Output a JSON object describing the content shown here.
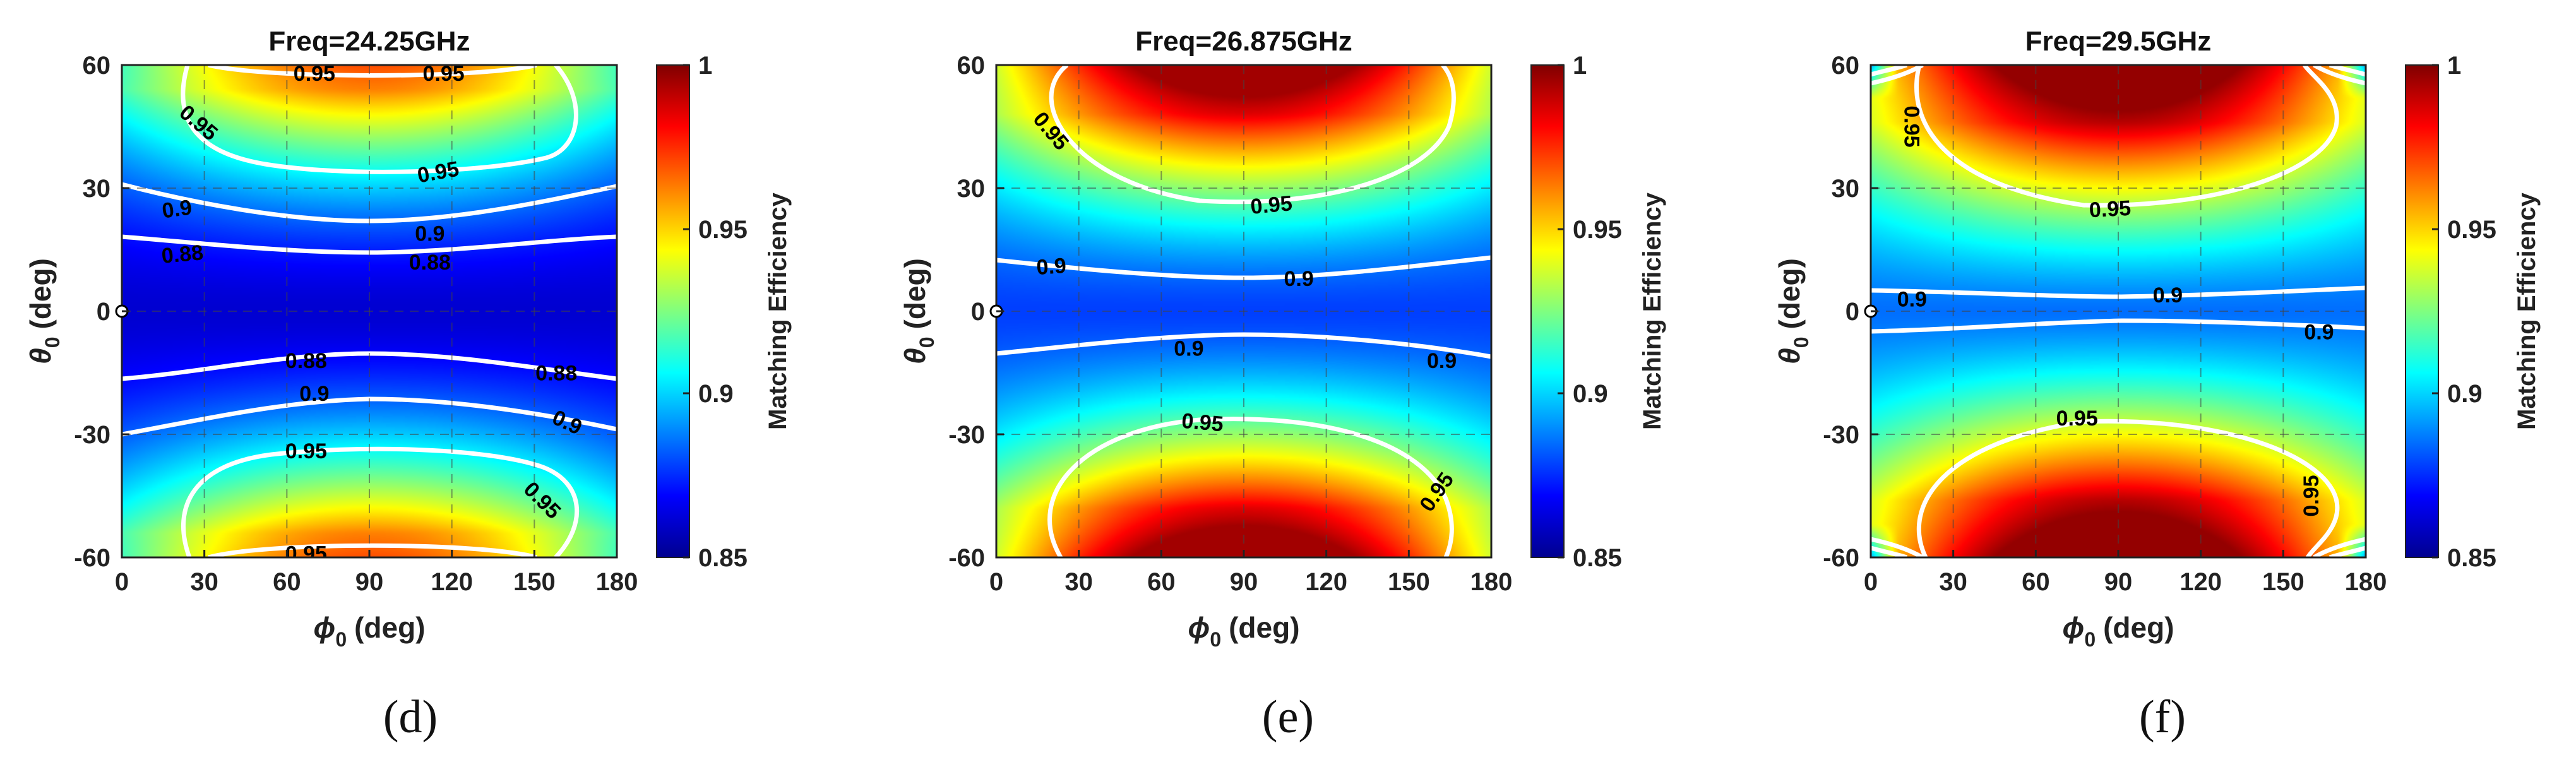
{
  "chart_data": [
    {
      "type": "heatmap",
      "panel": "(d)",
      "title": "Freq=24.25GHz",
      "xlabel_symbol": "ϕ",
      "xlabel_sub": "0",
      "xlabel_unit": "(deg)",
      "ylabel_symbol": "θ",
      "ylabel_sub": "0",
      "ylabel_unit": "(deg)",
      "xlim": [
        0,
        180
      ],
      "ylim": [
        -60,
        60
      ],
      "xticks": [
        0,
        30,
        60,
        90,
        120,
        150,
        180
      ],
      "yticks": [
        -60,
        -30,
        0,
        30,
        60
      ],
      "clim": [
        0.85,
        1
      ],
      "colorbar_ticks": [
        "0.85",
        "0.9",
        "0.95",
        "1"
      ],
      "colorbar_label": "Matching Efficiency",
      "contour_levels": [
        0.88,
        0.9,
        0.95
      ],
      "contour_labels": [
        {
          "text": "0.95",
          "x": 70,
          "y": 58,
          "rot": 0
        },
        {
          "text": "0.95",
          "x": 117,
          "y": 58,
          "rot": 0
        },
        {
          "text": "0.95",
          "x": 28,
          "y": 46,
          "rot": 40
        },
        {
          "text": "0.95",
          "x": 115,
          "y": 34,
          "rot": -10
        },
        {
          "text": "0.9",
          "x": 20,
          "y": 25,
          "rot": -8
        },
        {
          "text": "0.9",
          "x": 112,
          "y": 19,
          "rot": 0
        },
        {
          "text": "0.88",
          "x": 22,
          "y": 14,
          "rot": -5
        },
        {
          "text": "0.88",
          "x": 112,
          "y": 12,
          "rot": 0
        },
        {
          "text": "0.88",
          "x": 67,
          "y": -12,
          "rot": 0
        },
        {
          "text": "0.88",
          "x": 158,
          "y": -15,
          "rot": 0
        },
        {
          "text": "0.9",
          "x": 70,
          "y": -20,
          "rot": 0
        },
        {
          "text": "0.9",
          "x": 162,
          "y": -27,
          "rot": 25
        },
        {
          "text": "0.95",
          "x": 67,
          "y": -34,
          "rot": 0
        },
        {
          "text": "0.95",
          "x": 153,
          "y": -46,
          "rot": 45
        },
        {
          "text": "0.95",
          "x": 67,
          "y": -59,
          "rot": 0
        }
      ]
    },
    {
      "type": "heatmap",
      "panel": "(e)",
      "title": "Freq=26.875GHz",
      "xlabel_symbol": "ϕ",
      "xlabel_sub": "0",
      "xlabel_unit": "(deg)",
      "ylabel_symbol": "θ",
      "ylabel_sub": "0",
      "ylabel_unit": "(deg)",
      "xlim": [
        0,
        180
      ],
      "ylim": [
        -60,
        60
      ],
      "xticks": [
        0,
        30,
        60,
        90,
        120,
        150,
        180
      ],
      "yticks": [
        -60,
        -30,
        0,
        30,
        60
      ],
      "clim": [
        0.85,
        1
      ],
      "colorbar_ticks": [
        "0.85",
        "0.9",
        "0.95",
        "1"
      ],
      "colorbar_label": "Matching Efficiency",
      "contour_levels": [
        0.9,
        0.95
      ],
      "contour_labels": [
        {
          "text": "0.95",
          "x": 20,
          "y": 44,
          "rot": 50
        },
        {
          "text": "0.95",
          "x": 100,
          "y": 26,
          "rot": -5
        },
        {
          "text": "0.9",
          "x": 20,
          "y": 11,
          "rot": -4
        },
        {
          "text": "0.9",
          "x": 110,
          "y": 8,
          "rot": 0
        },
        {
          "text": "0.9",
          "x": 70,
          "y": -9,
          "rot": 0
        },
        {
          "text": "0.9",
          "x": 162,
          "y": -12,
          "rot": 0
        },
        {
          "text": "0.95",
          "x": 75,
          "y": -27,
          "rot": 5
        },
        {
          "text": "0.95",
          "x": 160,
          "y": -44,
          "rot": -55
        }
      ]
    },
    {
      "type": "heatmap",
      "panel": "(f)",
      "title": "Freq=29.5GHz",
      "xlabel_symbol": "ϕ",
      "xlabel_sub": "0",
      "xlabel_unit": "(deg)",
      "ylabel_symbol": "θ",
      "ylabel_sub": "0",
      "ylabel_unit": "(deg)",
      "xlim": [
        0,
        180
      ],
      "ylim": [
        -60,
        60
      ],
      "xticks": [
        0,
        30,
        60,
        90,
        120,
        150,
        180
      ],
      "yticks": [
        -60,
        -30,
        0,
        30,
        60
      ],
      "clim": [
        0.85,
        1
      ],
      "colorbar_ticks": [
        "0.85",
        "0.9",
        "0.95",
        "1"
      ],
      "colorbar_label": "Matching Efficiency",
      "contour_levels": [
        0.9,
        0.95
      ],
      "contour_labels": [
        {
          "text": "0.95",
          "x": 15,
          "y": 45,
          "rot": 90
        },
        {
          "text": "0.95",
          "x": 87,
          "y": 25,
          "rot": -3
        },
        {
          "text": "0.9",
          "x": 15,
          "y": 3,
          "rot": 0
        },
        {
          "text": "0.9",
          "x": 108,
          "y": 4,
          "rot": 0
        },
        {
          "text": "0.9",
          "x": 163,
          "y": -5,
          "rot": 0
        },
        {
          "text": "0.95",
          "x": 75,
          "y": -26,
          "rot": 0
        },
        {
          "text": "0.95",
          "x": 160,
          "y": -45,
          "rot": -90
        }
      ]
    }
  ]
}
